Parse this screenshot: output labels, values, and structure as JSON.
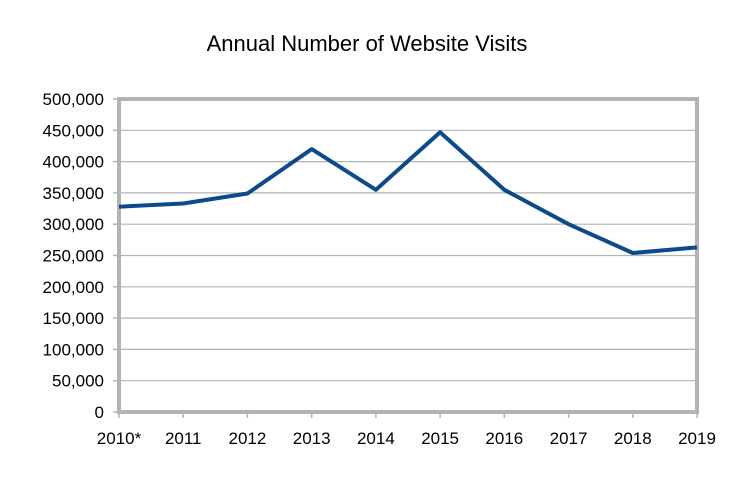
{
  "chart_data": {
    "type": "line",
    "title": "Annual Number of Website Visits",
    "xlabel": "",
    "ylabel": "",
    "categories": [
      "2010*",
      "2011",
      "2012",
      "2013",
      "2014",
      "2015",
      "2016",
      "2017",
      "2018",
      "2019"
    ],
    "series": [
      {
        "values": [
          328000,
          333000,
          349000,
          420000,
          355000,
          447000,
          355000,
          300000,
          254000,
          263000
        ],
        "color": "#0b4a8b"
      }
    ],
    "ylim": [
      0,
      500000
    ],
    "y_ticks": [
      0,
      50000,
      100000,
      150000,
      200000,
      250000,
      300000,
      350000,
      400000,
      450000,
      500000
    ],
    "y_tick_labels": [
      "0",
      "50,000",
      "100,000",
      "150,000",
      "200,000",
      "250,000",
      "300,000",
      "350,000",
      "400,000",
      "450,000",
      "500,000"
    ],
    "grid": true,
    "legend": "none",
    "frame_color": "#b3b3b3",
    "grid_color": "#b3b3b3"
  }
}
